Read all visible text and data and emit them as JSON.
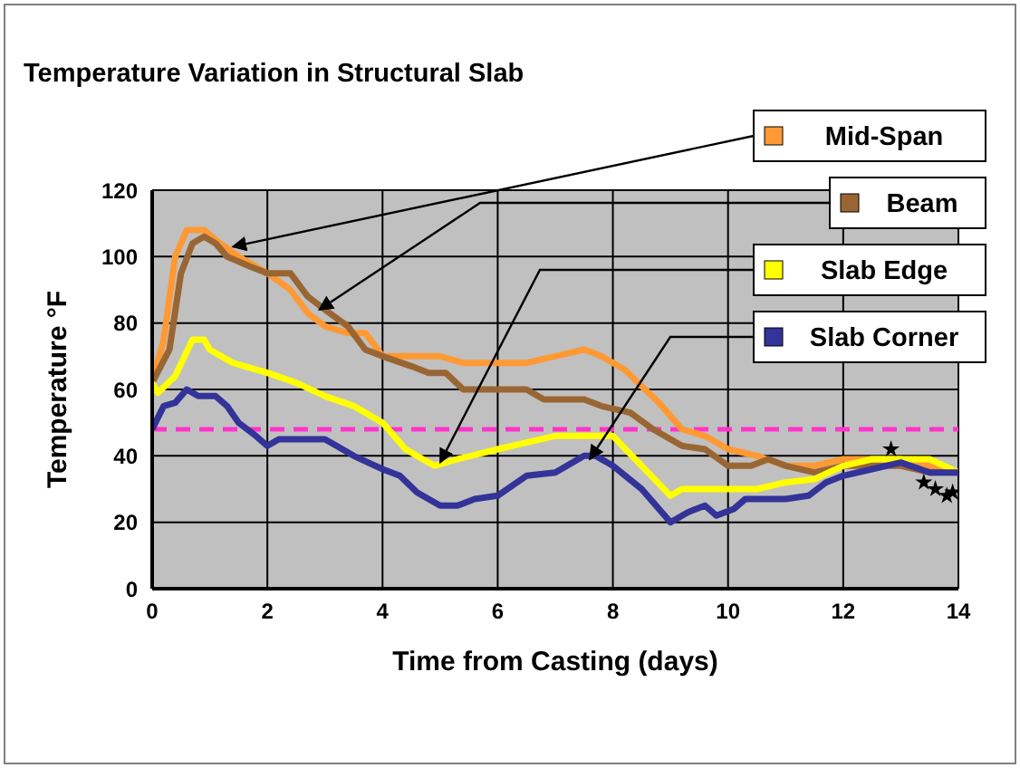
{
  "chart_data": {
    "type": "line",
    "title": "Temperature Variation in Structural Slab",
    "xlabel": "Time from Casting (days)",
    "ylabel": "Temperature °F",
    "xlim": [
      0,
      14
    ],
    "xticks": [
      0,
      2,
      4,
      6,
      8,
      10,
      12,
      14
    ],
    "ylim": [
      0,
      120
    ],
    "yticks": [
      0,
      20,
      40,
      60,
      80,
      100,
      120
    ],
    "grid": true,
    "legend": "top right",
    "marker": "none",
    "line_style": "solid",
    "series": [
      {
        "name": "Mid-Span",
        "color": "#ff9933",
        "x": [
          0,
          0.2,
          0.4,
          0.6,
          0.9,
          1.1,
          1.5,
          2,
          2.4,
          2.7,
          3,
          3.4,
          3.7,
          4,
          4.5,
          5,
          5.4,
          6,
          6.5,
          7,
          7.5,
          7.8,
          8.2,
          8.8,
          9.2,
          9.6,
          10,
          10.5,
          11,
          11.5,
          12,
          12.5,
          13,
          13.5,
          14
        ],
        "values": [
          62,
          75,
          100,
          108,
          108,
          105,
          100,
          95,
          90,
          83,
          79,
          77,
          77,
          70,
          70,
          70,
          68,
          68,
          68,
          70,
          72,
          70,
          66,
          56,
          48,
          46,
          42,
          40,
          37,
          37,
          39,
          39,
          39,
          37,
          35
        ]
      },
      {
        "name": "Beam",
        "color": "#996633",
        "x": [
          0,
          0.3,
          0.5,
          0.7,
          0.9,
          1.1,
          1.3,
          1.7,
          2,
          2.4,
          2.7,
          3,
          3.4,
          3.7,
          4,
          4.5,
          4.8,
          5.1,
          5.4,
          6,
          6.5,
          6.8,
          7.5,
          7.8,
          8.3,
          8.7,
          9.2,
          9.6,
          10,
          10.4,
          10.7,
          11,
          11.5,
          12,
          12.5,
          13,
          13.5,
          14
        ],
        "values": [
          62,
          72,
          95,
          104,
          106,
          104,
          100,
          97,
          95,
          95,
          88,
          84,
          79,
          72,
          70,
          67,
          65,
          65,
          60,
          60,
          60,
          57,
          57,
          55,
          53,
          48,
          43,
          42,
          37,
          37,
          39,
          37,
          35,
          37,
          37,
          37,
          35,
          35
        ]
      },
      {
        "name": "Slab Edge",
        "color": "#ffff00",
        "x": [
          0,
          0.1,
          0.4,
          0.7,
          0.9,
          1,
          1.4,
          2,
          2.5,
          3,
          3.5,
          4,
          4.4,
          4.7,
          4.9,
          5.3,
          6,
          6.5,
          7,
          7.5,
          8,
          8.5,
          9,
          9.2,
          10,
          10.5,
          11,
          11.5,
          12,
          12.5,
          13,
          13.5,
          14
        ],
        "values": [
          62,
          59,
          64,
          75,
          75,
          72,
          68,
          65,
          62,
          58,
          55,
          50,
          42,
          39,
          37,
          39,
          42,
          44,
          46,
          46,
          46,
          37,
          28,
          30,
          30,
          30,
          32,
          33,
          37,
          39,
          39,
          39,
          35
        ]
      },
      {
        "name": "Slab Corner",
        "color": "#333399",
        "x": [
          0,
          0.2,
          0.4,
          0.6,
          0.8,
          1.1,
          1.3,
          1.5,
          1.8,
          2,
          2.2,
          2.5,
          3,
          3.2,
          3.5,
          4,
          4.3,
          4.6,
          5,
          5.3,
          5.6,
          6,
          6.5,
          7,
          7.5,
          7.7,
          8,
          8.5,
          9,
          9.3,
          9.6,
          9.8,
          10.1,
          10.3,
          11,
          11.4,
          11.7,
          12,
          12.5,
          13,
          13.5,
          14
        ],
        "values": [
          48,
          55,
          56,
          60,
          58,
          58,
          55,
          50,
          46,
          43,
          45,
          45,
          45,
          43,
          40,
          36,
          34,
          29,
          25,
          25,
          27,
          28,
          34,
          35,
          40,
          40,
          37,
          30,
          20,
          23,
          25,
          22,
          24,
          27,
          27,
          28,
          32,
          34,
          36,
          38,
          35,
          35
        ]
      },
      {
        "type": "scatter",
        "color": "#000000",
        "marker": "star",
        "x": [
          12.83,
          13.4,
          13.6,
          13.8,
          13.9
        ],
        "values": [
          42,
          32,
          30,
          28,
          29
        ]
      }
    ],
    "ref_lines": [
      {
        "axis": "y",
        "value": 48,
        "color": "#ff33cc",
        "line_style": "dashed"
      }
    ]
  }
}
